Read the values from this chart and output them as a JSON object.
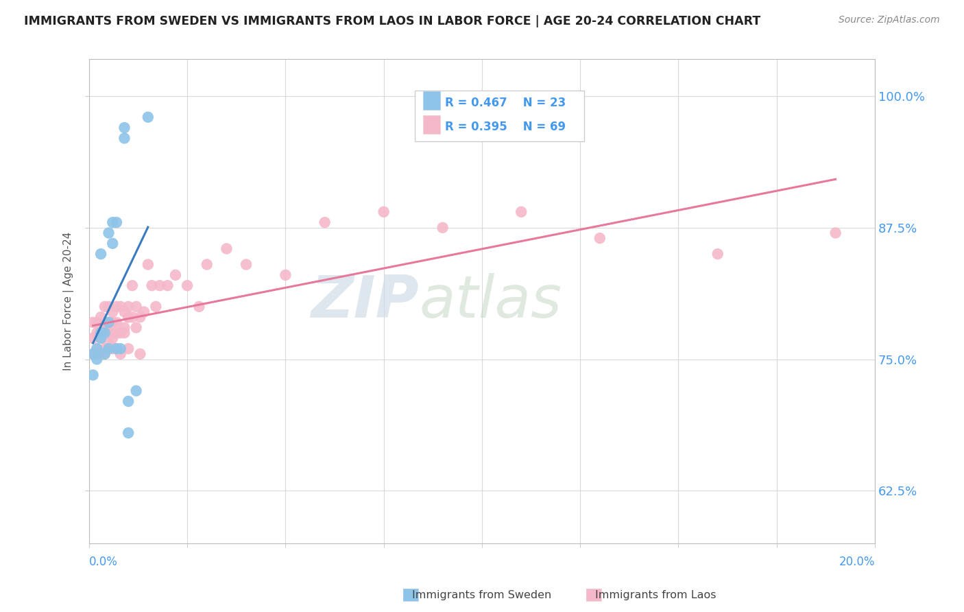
{
  "title": "IMMIGRANTS FROM SWEDEN VS IMMIGRANTS FROM LAOS IN LABOR FORCE | AGE 20-24 CORRELATION CHART",
  "source": "Source: ZipAtlas.com",
  "ylabel_label": "In Labor Force | Age 20-24",
  "ylabel_ticks": [
    "62.5%",
    "75.0%",
    "87.5%",
    "100.0%"
  ],
  "ylabel_vals": [
    0.625,
    0.75,
    0.875,
    1.0
  ],
  "xlim": [
    0.0,
    0.2
  ],
  "ylim": [
    0.575,
    1.035
  ],
  "legend_r_sweden": "R = 0.467",
  "legend_n_sweden": "N = 23",
  "legend_r_laos": "R = 0.395",
  "legend_n_laos": "N = 69",
  "sweden_color": "#8ec4e8",
  "laos_color": "#f5b8c8",
  "sweden_line_color": "#3a7bbf",
  "laos_line_color": "#e8789a",
  "watermark_zip": "ZIP",
  "watermark_atlas": "atlas",
  "sweden_scatter_x": [
    0.001,
    0.001,
    0.002,
    0.002,
    0.003,
    0.003,
    0.003,
    0.004,
    0.004,
    0.005,
    0.005,
    0.005,
    0.006,
    0.006,
    0.007,
    0.007,
    0.008,
    0.009,
    0.009,
    0.01,
    0.01,
    0.012,
    0.015
  ],
  "sweden_scatter_y": [
    0.735,
    0.755,
    0.76,
    0.75,
    0.775,
    0.77,
    0.85,
    0.775,
    0.755,
    0.785,
    0.76,
    0.87,
    0.88,
    0.86,
    0.76,
    0.88,
    0.76,
    0.96,
    0.97,
    0.68,
    0.71,
    0.72,
    0.98
  ],
  "laos_scatter_x": [
    0.001,
    0.001,
    0.001,
    0.002,
    0.002,
    0.002,
    0.002,
    0.003,
    0.003,
    0.003,
    0.003,
    0.003,
    0.004,
    0.004,
    0.004,
    0.004,
    0.004,
    0.005,
    0.005,
    0.005,
    0.005,
    0.005,
    0.005,
    0.005,
    0.006,
    0.006,
    0.006,
    0.006,
    0.006,
    0.007,
    0.007,
    0.007,
    0.007,
    0.008,
    0.008,
    0.008,
    0.009,
    0.009,
    0.009,
    0.01,
    0.01,
    0.01,
    0.01,
    0.011,
    0.011,
    0.012,
    0.012,
    0.013,
    0.013,
    0.014,
    0.015,
    0.016,
    0.017,
    0.018,
    0.02,
    0.022,
    0.025,
    0.028,
    0.03,
    0.035,
    0.04,
    0.05,
    0.06,
    0.075,
    0.09,
    0.11,
    0.13,
    0.16,
    0.19
  ],
  "laos_scatter_y": [
    0.755,
    0.77,
    0.785,
    0.76,
    0.775,
    0.755,
    0.785,
    0.77,
    0.78,
    0.755,
    0.78,
    0.79,
    0.76,
    0.775,
    0.8,
    0.78,
    0.755,
    0.765,
    0.775,
    0.76,
    0.785,
    0.8,
    0.775,
    0.785,
    0.775,
    0.795,
    0.76,
    0.785,
    0.77,
    0.785,
    0.8,
    0.76,
    0.775,
    0.775,
    0.755,
    0.8,
    0.78,
    0.775,
    0.795,
    0.79,
    0.76,
    0.79,
    0.8,
    0.79,
    0.82,
    0.78,
    0.8,
    0.755,
    0.79,
    0.795,
    0.84,
    0.82,
    0.8,
    0.82,
    0.82,
    0.83,
    0.82,
    0.8,
    0.84,
    0.855,
    0.84,
    0.83,
    0.88,
    0.89,
    0.875,
    0.89,
    0.865,
    0.85,
    0.87
  ]
}
